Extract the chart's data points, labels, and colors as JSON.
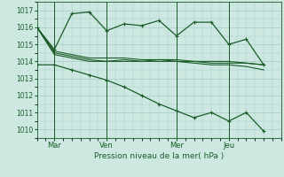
{
  "bg_color": "#cce8e0",
  "grid_color": "#a8ccca",
  "line_color": "#1a5c28",
  "title": "Pression niveau de la mer( hPa )",
  "ylabel_values": [
    1010,
    1011,
    1012,
    1013,
    1014,
    1015,
    1016,
    1017
  ],
  "xtick_labels": [
    "Mar",
    "Ven",
    "Mer",
    "Jeu"
  ],
  "xtick_positions": [
    1,
    4,
    8,
    11
  ],
  "vline_positions": [
    1,
    4,
    8,
    11
  ],
  "ylim": [
    1009.5,
    1017.5
  ],
  "xlim": [
    0,
    14
  ],
  "series": [
    {
      "x": [
        0,
        1,
        2,
        3,
        4,
        5,
        6,
        7,
        8,
        9,
        10,
        11,
        12,
        13
      ],
      "y": [
        1016.0,
        1014.7,
        1016.8,
        1016.9,
        1015.8,
        1016.2,
        1016.1,
        1016.4,
        1015.5,
        1016.3,
        1016.3,
        1015.0,
        1015.3,
        1013.8
      ],
      "marker": "+"
    },
    {
      "x": [
        0,
        1,
        2,
        3,
        4,
        5,
        6,
        7,
        8,
        9,
        10,
        11,
        12,
        13
      ],
      "y": [
        1016.0,
        1014.5,
        1014.3,
        1014.1,
        1014.0,
        1014.1,
        1014.0,
        1014.1,
        1014.0,
        1014.0,
        1013.9,
        1013.9,
        1013.9,
        1013.8
      ],
      "marker": null
    },
    {
      "x": [
        0,
        1,
        2,
        3,
        4,
        5,
        6,
        7,
        8,
        9,
        10,
        11,
        12,
        13
      ],
      "y": [
        1016.0,
        1014.6,
        1014.4,
        1014.2,
        1014.2,
        1014.2,
        1014.1,
        1014.1,
        1014.1,
        1014.0,
        1014.0,
        1014.0,
        1013.9,
        1013.8
      ],
      "marker": null
    },
    {
      "x": [
        0,
        1,
        2,
        3,
        4,
        5,
        6,
        7,
        8,
        9,
        10,
        11,
        12,
        13
      ],
      "y": [
        1016.0,
        1014.4,
        1014.2,
        1014.0,
        1014.0,
        1014.0,
        1014.0,
        1014.0,
        1014.0,
        1013.9,
        1013.8,
        1013.8,
        1013.7,
        1013.5
      ],
      "marker": null
    },
    {
      "x": [
        0,
        1,
        2,
        3,
        4,
        5,
        6,
        7,
        8,
        9,
        10,
        11,
        12,
        13
      ],
      "y": [
        1013.8,
        1013.8,
        1013.5,
        1013.2,
        1012.9,
        1012.5,
        1012.0,
        1011.5,
        1011.1,
        1010.7,
        1011.0,
        1010.5,
        1011.0,
        1009.9
      ],
      "marker": "+"
    }
  ]
}
